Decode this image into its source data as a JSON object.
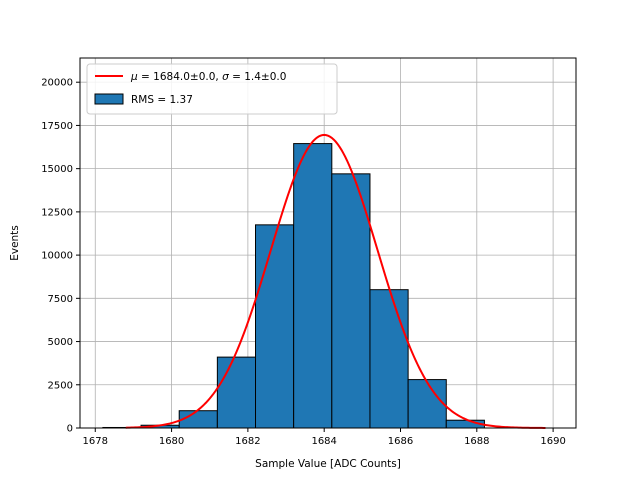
{
  "chart_data": {
    "type": "bar",
    "xlabel": "Sample Value [ADC Counts]",
    "ylabel": "Events",
    "xlim": [
      1677.6,
      1690.6
    ],
    "ylim": [
      0,
      21400
    ],
    "grid": true,
    "legend_position": "top-left",
    "x_ticks": [
      1678,
      1680,
      1682,
      1684,
      1686,
      1688,
      1690
    ],
    "y_ticks": [
      0,
      2500,
      5000,
      7500,
      10000,
      12500,
      15000,
      17500,
      20000
    ],
    "x_tick_labels": [
      "1678",
      "1680",
      "1682",
      "1684",
      "1686",
      "1688",
      "1690"
    ],
    "y_tick_labels": [
      "0",
      "2500",
      "5000",
      "7500",
      "10000",
      "12500",
      "15000",
      "17500",
      "20000"
    ],
    "histogram": {
      "name": "RMS = 1.37",
      "bin_edges": [
        1678.2,
        1679.2,
        1680.2,
        1681.2,
        1682.2,
        1683.2,
        1684.2,
        1685.2,
        1686.2,
        1687.2,
        1688.2
      ],
      "counts": [
        30,
        160,
        1000,
        4100,
        11750,
        16450,
        14700,
        8000,
        2800,
        450
      ],
      "color": "#1f77b4",
      "edge_color": "#000000"
    },
    "fit": {
      "name_math": "μ = 1684.0±0.0, σ = 1.4±0.0",
      "type": "gaussian",
      "mu": 1684.0,
      "sigma": 1.4,
      "amplitude": 16950,
      "x_range": [
        1678.8,
        1689.8
      ],
      "color": "#ff0000"
    },
    "colors": {
      "bar": "#1f77b4",
      "fit": "#ff0000",
      "grid": "#b0b0b0"
    }
  },
  "legend": {
    "fit_label_mu": "μ",
    "fit_label_mu_rest": " = 1684.0±0.0, ",
    "fit_label_sigma": "σ",
    "fit_label_sigma_rest": " = 1.4±0.0",
    "hist_label": "RMS = 1.37"
  }
}
